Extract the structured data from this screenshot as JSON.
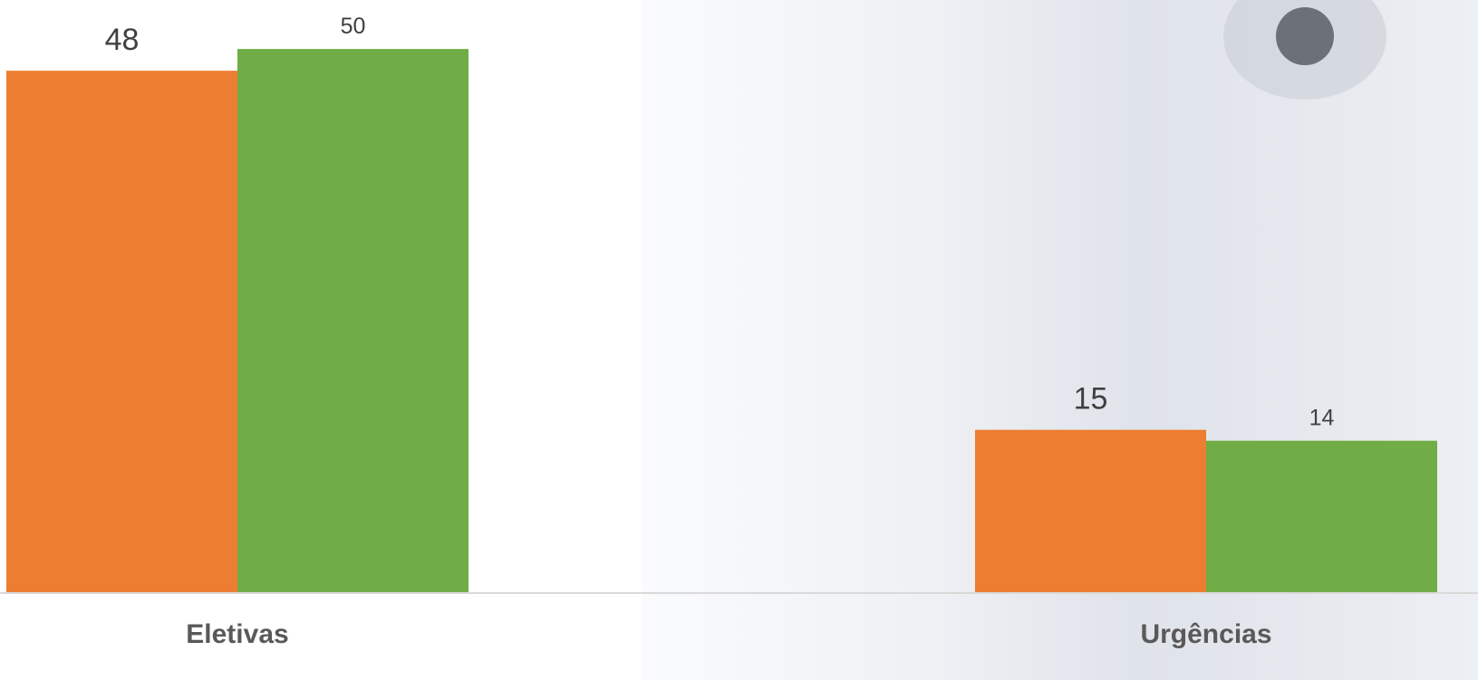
{
  "chart_data": {
    "type": "bar",
    "categories": [
      "Eletivas",
      "Urgências"
    ],
    "series": [
      {
        "color": "#ED7D31",
        "values": [
          48,
          15
        ]
      },
      {
        "color": "#70AD47",
        "values": [
          50,
          14
        ]
      }
    ],
    "ylim": [
      0,
      54.5
    ]
  }
}
